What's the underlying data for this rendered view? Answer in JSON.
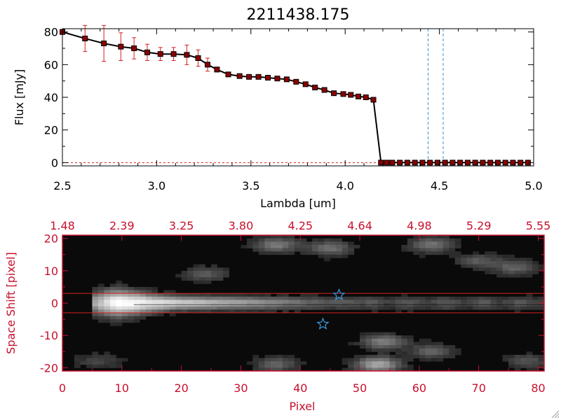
{
  "chart_data": [
    {
      "type": "line",
      "title": "2211438.175",
      "xlabel": "Lambda [um]",
      "ylabel": "Flux [mJy]",
      "xlim": [
        2.5,
        5.0
      ],
      "ylim": [
        -2,
        82
      ],
      "xticks": [
        2.5,
        3.0,
        3.5,
        4.0,
        4.5,
        5.0
      ],
      "xtick_labels": [
        "2.5",
        "3.0",
        "3.5",
        "4.0",
        "4.5",
        "5.0"
      ],
      "yticks": [
        0,
        20,
        40,
        60,
        80
      ],
      "ytick_labels": [
        "0",
        "20",
        "40",
        "60",
        "80"
      ],
      "line_color": "#000000",
      "marker_color": "#8b0000",
      "errorbar_color": "#d42020",
      "zero_line_color": "#d42020",
      "vlines_x": [
        4.44,
        4.52
      ],
      "vline_color": "#3a8fd0",
      "series": [
        {
          "x": [
            2.5,
            2.62,
            2.72,
            2.81,
            2.88,
            2.95,
            3.02,
            3.09,
            3.16,
            3.22,
            3.27,
            3.32,
            3.38,
            3.44,
            3.49,
            3.54,
            3.59,
            3.64,
            3.69,
            3.74,
            3.79,
            3.84,
            3.89,
            3.94,
            3.99,
            4.03,
            4.07,
            4.11,
            4.15,
            4.19,
            4.22,
            4.25,
            4.29,
            4.33,
            4.37,
            4.41,
            4.45,
            4.49,
            4.53,
            4.57,
            4.61,
            4.65,
            4.69,
            4.73,
            4.77,
            4.81,
            4.85,
            4.89,
            4.93,
            4.97
          ],
          "y": [
            80,
            76,
            73,
            71,
            70,
            67.5,
            66.5,
            66.5,
            66,
            64,
            60,
            57,
            54,
            53,
            52.5,
            52.5,
            52,
            51.5,
            51,
            49.5,
            48,
            46,
            44.5,
            42.5,
            42,
            41.5,
            40.5,
            40,
            38.5,
            0,
            0,
            0,
            0,
            0,
            0,
            0,
            0,
            0,
            0,
            0,
            0,
            0,
            0,
            0,
            0,
            0,
            0,
            0,
            0,
            0
          ],
          "yerr": [
            1.5,
            8,
            11,
            8.5,
            6.5,
            5,
            4,
            4,
            6,
            5,
            4,
            1.5,
            0.5,
            0.5,
            0.5,
            0.5,
            0.5,
            0.5,
            0.5,
            0.5,
            0.5,
            0.5,
            0.5,
            0.5,
            0.5,
            0.5,
            0.5,
            0.5,
            0.5,
            0,
            0,
            0,
            0,
            0,
            0,
            0,
            0,
            0,
            0,
            0,
            0,
            0,
            0,
            0,
            0,
            0,
            0,
            0,
            0,
            0
          ]
        }
      ]
    },
    {
      "type": "heatmap",
      "xlabel": "Pixel",
      "ylabel": "Space Shift [pixel]",
      "xlim": [
        0,
        81
      ],
      "ylim": [
        -21,
        21
      ],
      "xticks": [
        0,
        10,
        20,
        30,
        40,
        50,
        60,
        70,
        80
      ],
      "xtick_labels": [
        "0",
        "10",
        "20",
        "30",
        "40",
        "50",
        "60",
        "70",
        "80"
      ],
      "yticks": [
        -20,
        -10,
        0,
        10,
        20
      ],
      "ytick_labels": [
        "-20",
        "-10",
        "0",
        "10",
        "20"
      ],
      "top_axis_ticks": [
        0,
        10,
        20,
        30,
        40,
        50,
        60,
        70,
        80
      ],
      "top_axis_labels": [
        "1.48",
        "2.39",
        "3.25",
        "3.80",
        "4.25",
        "4.64",
        "4.98",
        "5.29",
        "5.55"
      ],
      "hlines_y": [
        3,
        -3
      ],
      "hline_color": "#d42020",
      "star_color": "#3a8fd0",
      "stars": [
        {
          "x": 46.5,
          "y": 2.5
        },
        {
          "x": 43.8,
          "y": -6.5
        }
      ],
      "trace": {
        "y": 0,
        "x_start": 5,
        "x_end": 81,
        "peak_x": 9
      },
      "blobs": [
        {
          "x": 36,
          "y": 18,
          "strength": 0.35
        },
        {
          "x": 45,
          "y": 17,
          "strength": 0.3
        },
        {
          "x": 62,
          "y": 18,
          "strength": 0.32
        },
        {
          "x": 70,
          "y": 13,
          "strength": 0.22
        },
        {
          "x": 76,
          "y": 11,
          "strength": 0.25
        },
        {
          "x": 24,
          "y": 9,
          "strength": 0.22
        },
        {
          "x": 54,
          "y": -12,
          "strength": 0.38
        },
        {
          "x": 62,
          "y": -15,
          "strength": 0.25
        },
        {
          "x": 53,
          "y": -19,
          "strength": 0.55
        },
        {
          "x": 36,
          "y": -19,
          "strength": 0.25
        },
        {
          "x": 78,
          "y": -18,
          "strength": 0.2
        },
        {
          "x": 6,
          "y": -18,
          "strength": 0.15
        }
      ]
    }
  ]
}
